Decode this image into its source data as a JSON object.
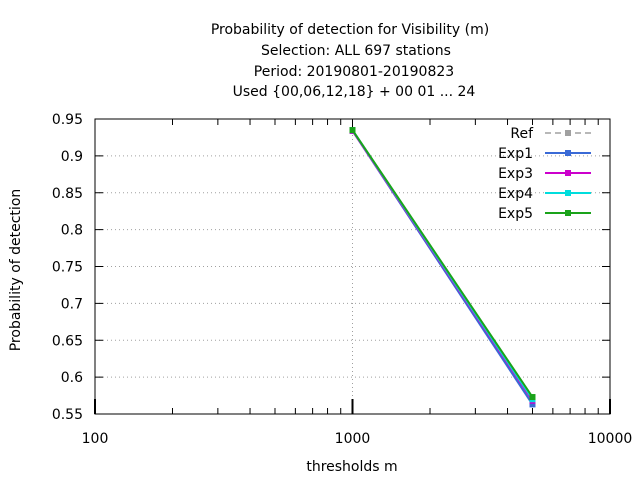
{
  "chart_data": {
    "type": "line",
    "title_lines": [
      "Probability of detection  for Visibility (m)",
      "Selection: ALL    697 stations",
      "Period: 20190801-20190823",
      "Used {00,06,12,18} + 00 01 ... 24"
    ],
    "xlabel": "thresholds m",
    "ylabel": "Probability of detection",
    "x_scale": "log",
    "xlim": [
      100,
      10000
    ],
    "ylim": [
      0.55,
      0.95
    ],
    "x_ticks": [
      {
        "value": 100,
        "label": "100"
      },
      {
        "value": 1000,
        "label": "1000"
      },
      {
        "value": 10000,
        "label": "10000"
      }
    ],
    "y_ticks": [
      {
        "value": 0.55,
        "label": "0.55"
      },
      {
        "value": 0.6,
        "label": "0.6"
      },
      {
        "value": 0.65,
        "label": "0.65"
      },
      {
        "value": 0.7,
        "label": "0.7"
      },
      {
        "value": 0.75,
        "label": "0.75"
      },
      {
        "value": 0.8,
        "label": "0.8"
      },
      {
        "value": 0.85,
        "label": "0.85"
      },
      {
        "value": 0.9,
        "label": "0.9"
      },
      {
        "value": 0.95,
        "label": "0.95"
      }
    ],
    "grid": true,
    "legend_position": "top-right",
    "series": [
      {
        "name": "Ref",
        "color": "#a0a0a0",
        "dashed": true,
        "x": [
          1000,
          5000
        ],
        "y": [
          0.934,
          0.567
        ]
      },
      {
        "name": "Exp1",
        "color": "#3a6ad6",
        "dashed": false,
        "x": [
          1000,
          5000
        ],
        "y": [
          0.934,
          0.563
        ]
      },
      {
        "name": "Exp3",
        "color": "#cc00cc",
        "dashed": false,
        "x": [
          1000,
          5000
        ],
        "y": [
          0.934,
          0.568
        ]
      },
      {
        "name": "Exp4",
        "color": "#00dddd",
        "dashed": false,
        "x": [
          1000,
          5000
        ],
        "y": [
          0.935,
          0.57
        ]
      },
      {
        "name": "Exp5",
        "color": "#1aa31a",
        "dashed": false,
        "x": [
          1000,
          5000
        ],
        "y": [
          0.935,
          0.573
        ]
      }
    ]
  }
}
